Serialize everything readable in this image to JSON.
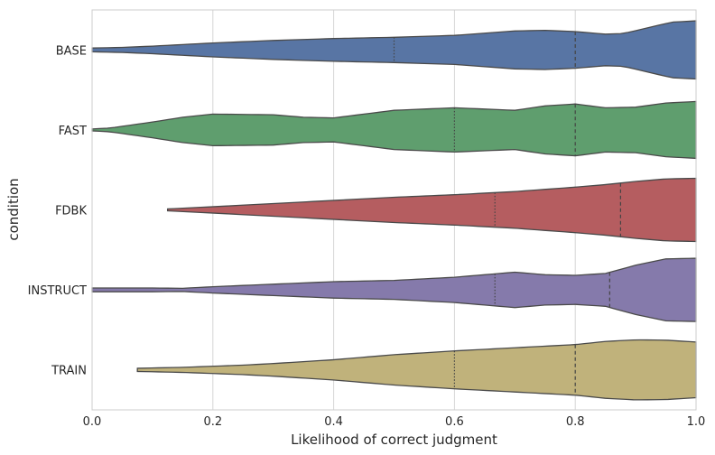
{
  "chart_data": {
    "type": "violin",
    "orientation": "horizontal",
    "xlabel": "Likelihood of correct judgment",
    "ylabel": "condition",
    "xlim": [
      0,
      1
    ],
    "xticks": [
      0.0,
      0.2,
      0.4,
      0.6,
      0.8,
      1.0
    ],
    "xtick_labels": [
      "0.0",
      "0.2",
      "0.4",
      "0.6",
      "0.8",
      "1.0"
    ],
    "grid": true,
    "inner": "quartile",
    "categories": [
      "BASE",
      "FAST",
      "FDBK",
      "INSTRUCT",
      "TRAIN"
    ],
    "series": [
      {
        "category": "BASE",
        "color": "#5875a4",
        "min": 0.0,
        "max": 1.0,
        "q1": 0.5,
        "median": 0.8,
        "q3": 1.0,
        "profile_x": [
          0.0,
          0.05,
          0.1,
          0.2,
          0.3,
          0.4,
          0.5,
          0.6,
          0.7,
          0.75,
          0.8,
          0.85,
          0.88,
          0.92,
          0.96,
          1.0
        ],
        "profile_density": [
          0.06,
          0.08,
          0.12,
          0.22,
          0.3,
          0.36,
          0.4,
          0.46,
          0.6,
          0.62,
          0.58,
          0.5,
          0.52,
          0.7,
          0.88,
          0.92
        ]
      },
      {
        "category": "FAST",
        "color": "#5f9e6e",
        "min": 0.0,
        "max": 1.0,
        "q1": 0.6,
        "median": 0.8,
        "q3": 1.0,
        "profile_x": [
          0.0,
          0.03,
          0.1,
          0.15,
          0.2,
          0.3,
          0.35,
          0.4,
          0.45,
          0.5,
          0.6,
          0.7,
          0.75,
          0.8,
          0.85,
          0.9,
          0.95,
          1.0
        ],
        "profile_density": [
          0.03,
          0.06,
          0.25,
          0.4,
          0.5,
          0.48,
          0.4,
          0.38,
          0.5,
          0.62,
          0.7,
          0.62,
          0.76,
          0.82,
          0.7,
          0.72,
          0.85,
          0.9
        ]
      },
      {
        "category": "FDBK",
        "color": "#b55d60",
        "min": 0.125,
        "max": 1.0,
        "q1": 0.667,
        "median": 0.875,
        "q3": 1.0,
        "profile_x": [
          0.125,
          0.2,
          0.3,
          0.4,
          0.5,
          0.6,
          0.7,
          0.8,
          0.85,
          0.9,
          0.95,
          1.0
        ],
        "profile_density": [
          0.03,
          0.1,
          0.2,
          0.3,
          0.4,
          0.48,
          0.58,
          0.72,
          0.8,
          0.9,
          0.98,
          1.0
        ]
      },
      {
        "category": "INSTRUCT",
        "color": "#857aab",
        "min": 0.0,
        "max": 1.0,
        "q1": 0.667,
        "median": 0.857,
        "q3": 1.0,
        "profile_x": [
          0.0,
          0.1,
          0.15,
          0.2,
          0.3,
          0.4,
          0.5,
          0.6,
          0.7,
          0.75,
          0.8,
          0.85,
          0.9,
          0.95,
          1.0
        ],
        "profile_density": [
          0.06,
          0.06,
          0.05,
          0.1,
          0.18,
          0.26,
          0.3,
          0.4,
          0.56,
          0.48,
          0.46,
          0.52,
          0.78,
          0.98,
          1.0
        ]
      },
      {
        "category": "TRAIN",
        "color": "#c0b27b",
        "min": 0.075,
        "max": 1.0,
        "q1": 0.6,
        "median": 0.8,
        "q3": 1.0,
        "profile_x": [
          0.075,
          0.15,
          0.25,
          0.3,
          0.4,
          0.5,
          0.6,
          0.7,
          0.8,
          0.85,
          0.9,
          0.95,
          1.0
        ],
        "profile_density": [
          0.05,
          0.08,
          0.15,
          0.2,
          0.32,
          0.48,
          0.6,
          0.7,
          0.8,
          0.9,
          0.95,
          0.94,
          0.88
        ]
      }
    ]
  }
}
